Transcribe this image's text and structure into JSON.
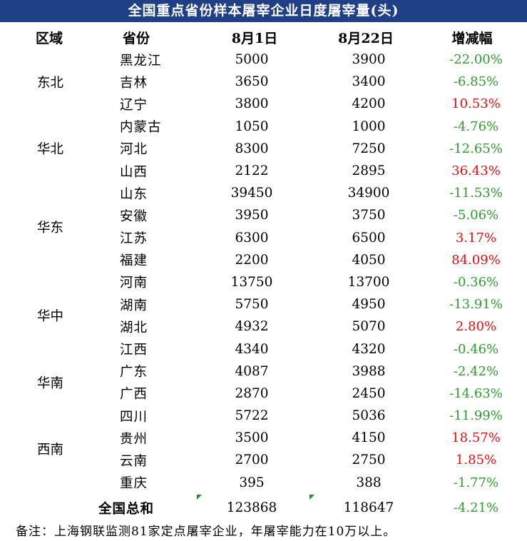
{
  "title": "全国重点省份样本屠宰企业日度屠宰量(头)",
  "headers": {
    "region": "区域",
    "province": "省份",
    "aug1": "8月1日",
    "aug22": "8月22日",
    "change": "增减幅"
  },
  "regions": [
    "东北",
    "华北",
    "华东",
    "华中",
    "华南",
    "西南"
  ],
  "rows": [
    {
      "province": "黑龙江",
      "aug1": "5000",
      "aug22": "3900",
      "change": "-22.00%"
    },
    {
      "province": "吉林",
      "aug1": "3650",
      "aug22": "3400",
      "change": "-6.85%"
    },
    {
      "province": "辽宁",
      "aug1": "3800",
      "aug22": "4200",
      "change": "10.53%"
    },
    {
      "province": "内蒙古",
      "aug1": "1050",
      "aug22": "1000",
      "change": "-4.76%"
    },
    {
      "province": "河北",
      "aug1": "8300",
      "aug22": "7250",
      "change": "-12.65%"
    },
    {
      "province": "山西",
      "aug1": "2122",
      "aug22": "2895",
      "change": "36.43%"
    },
    {
      "province": "山东",
      "aug1": "39450",
      "aug22": "34900",
      "change": "-11.53%"
    },
    {
      "province": "安徽",
      "aug1": "3950",
      "aug22": "3750",
      "change": "-5.06%"
    },
    {
      "province": "江苏",
      "aug1": "6300",
      "aug22": "6500",
      "change": "3.17%"
    },
    {
      "province": "福建",
      "aug1": "2200",
      "aug22": "4050",
      "change": "84.09%"
    },
    {
      "province": "河南",
      "aug1": "13750",
      "aug22": "13700",
      "change": "-0.36%"
    },
    {
      "province": "湖南",
      "aug1": "5750",
      "aug22": "4950",
      "change": "-13.91%"
    },
    {
      "province": "湖北",
      "aug1": "4932",
      "aug22": "5070",
      "change": "2.80%"
    },
    {
      "province": "江西",
      "aug1": "4340",
      "aug22": "4320",
      "change": "-0.46%"
    },
    {
      "province": "广东",
      "aug1": "4087",
      "aug22": "3988",
      "change": "-2.42%"
    },
    {
      "province": "广西",
      "aug1": "2870",
      "aug22": "2450",
      "change": "-14.63%"
    },
    {
      "province": "四川",
      "aug1": "5722",
      "aug22": "5036",
      "change": "-11.99%"
    },
    {
      "province": "贵州",
      "aug1": "3500",
      "aug22": "4150",
      "change": "18.57%"
    },
    {
      "province": "云南",
      "aug1": "2700",
      "aug22": "2750",
      "change": "1.85%"
    },
    {
      "province": "重庆",
      "aug1": "395",
      "aug22": "388",
      "change": "-1.77%"
    }
  ],
  "total": {
    "label": "全国总和",
    "aug1": "123868",
    "aug22": "118647",
    "change": "-4.21%"
  },
  "note": "备注：上海钢联监测81家定点屠宰企业，年屠宰能力在10万以上。",
  "colors": {
    "title_bg": "#1f3f86",
    "negative": "#2e9b2e",
    "positive": "#e01010"
  }
}
